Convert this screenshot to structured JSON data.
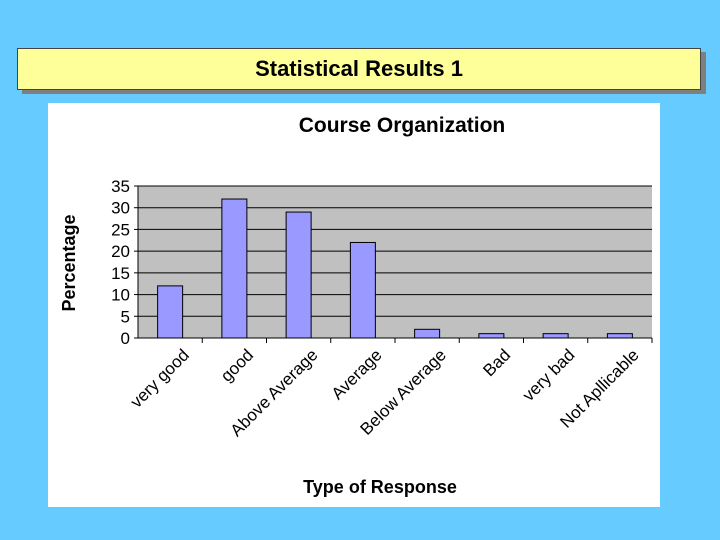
{
  "slide": {
    "title": "Statistical Results 1",
    "title_bg": "#ffff99",
    "background": "#66ccff"
  },
  "chart_data": {
    "type": "bar",
    "title": "Course Organization",
    "xlabel": "Type of Response",
    "ylabel": "Percentage",
    "categories": [
      "very good",
      "good",
      "Above Average",
      "Average",
      "Below Average",
      "Bad",
      "very bad",
      "Not Apllicable"
    ],
    "values": [
      12,
      32,
      29,
      22,
      2,
      1,
      1,
      1
    ],
    "ylim": [
      0,
      35
    ],
    "yticks": [
      "0",
      "5",
      "10",
      "15",
      "20",
      "25",
      "30",
      "35"
    ],
    "grid": true,
    "plot_bg": "#c0c0c0",
    "bar_color": "#9999ff"
  }
}
